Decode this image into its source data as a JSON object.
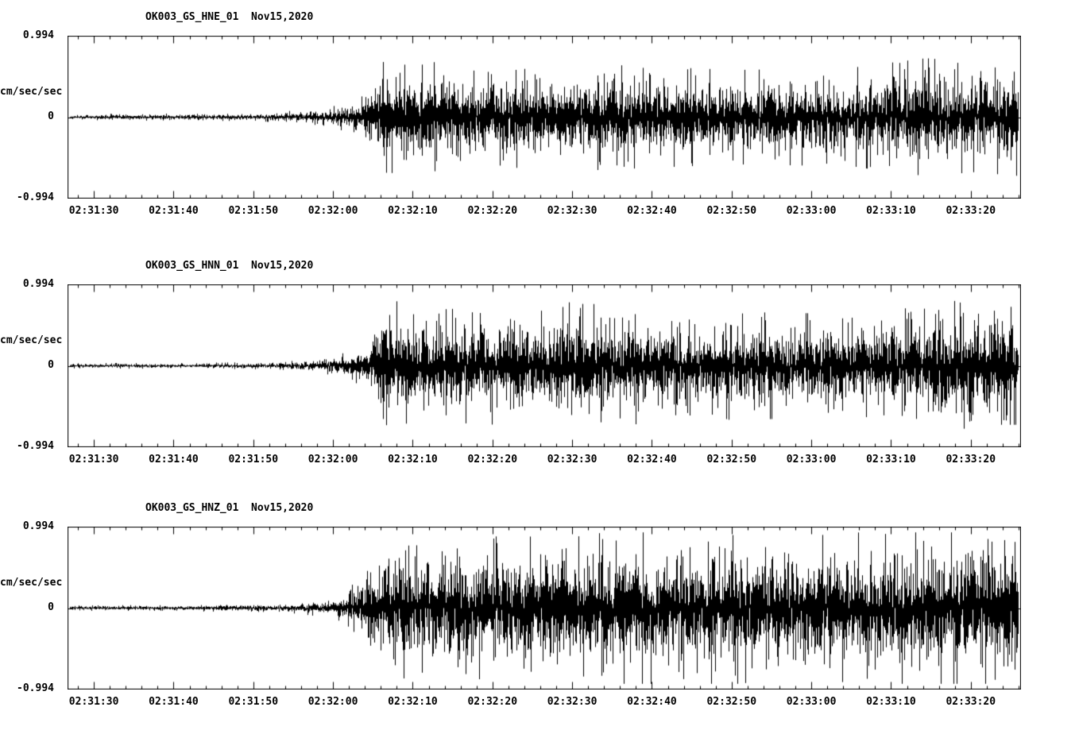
{
  "page": {
    "background_color": "#ffffff",
    "trace_color": "#000000",
    "text_color": "#000000"
  },
  "chart_data": [
    {
      "type": "line",
      "chart_kind": "seismogram-waveform",
      "title": "OK003_GS_HNE_01  Nov15,2020",
      "ylabel": "cm/sec/sec",
      "ytick_labels": [
        "0.994",
        "0",
        "-0.994"
      ],
      "ylim": [
        -0.994,
        0.994
      ],
      "grid": false,
      "legend": false,
      "x_tick_labels": [
        "02:31:30",
        "02:31:40",
        "02:31:50",
        "02:32:00",
        "02:32:10",
        "02:32:20",
        "02:32:30",
        "02:32:40",
        "02:32:50",
        "02:33:00",
        "02:33:10",
        "02:33:20"
      ],
      "x_span_seconds": 119.6,
      "first_major_offset_s": 3.3,
      "major_step_s": 10,
      "first_minor_offset_s": 1.3,
      "minor_step_s": 2,
      "amplitude_envelope": [
        [
          0.0,
          0.016
        ],
        [
          0.2,
          0.02
        ],
        [
          0.27,
          0.045
        ],
        [
          0.305,
          0.09
        ],
        [
          0.33,
          0.28
        ],
        [
          0.36,
          0.3
        ],
        [
          0.42,
          0.25
        ],
        [
          0.55,
          0.27
        ],
        [
          0.7,
          0.24
        ],
        [
          0.82,
          0.25
        ],
        [
          0.9,
          0.3
        ],
        [
          0.95,
          0.28
        ],
        [
          1.0,
          0.3
        ]
      ]
    },
    {
      "type": "line",
      "chart_kind": "seismogram-waveform",
      "title": "OK003_GS_HNN_01  Nov15,2020",
      "ylabel": "cm/sec/sec",
      "ytick_labels": [
        "0.994",
        "0",
        "-0.994"
      ],
      "ylim": [
        -0.994,
        0.994
      ],
      "grid": false,
      "legend": false,
      "x_tick_labels": [
        "02:31:30",
        "02:31:40",
        "02:31:50",
        "02:32:00",
        "02:32:10",
        "02:32:20",
        "02:32:30",
        "02:32:40",
        "02:32:50",
        "02:33:00",
        "02:33:10",
        "02:33:20"
      ],
      "x_span_seconds": 119.6,
      "first_major_offset_s": 3.3,
      "major_step_s": 10,
      "first_minor_offset_s": 1.3,
      "minor_step_s": 2,
      "amplitude_envelope": [
        [
          0.0,
          0.013
        ],
        [
          0.22,
          0.018
        ],
        [
          0.27,
          0.04
        ],
        [
          0.31,
          0.1
        ],
        [
          0.335,
          0.36
        ],
        [
          0.36,
          0.28
        ],
        [
          0.45,
          0.3
        ],
        [
          0.55,
          0.33
        ],
        [
          0.62,
          0.28
        ],
        [
          0.75,
          0.27
        ],
        [
          0.85,
          0.26
        ],
        [
          0.92,
          0.34
        ],
        [
          0.96,
          0.3
        ],
        [
          1.0,
          0.3
        ]
      ]
    },
    {
      "type": "line",
      "chart_kind": "seismogram-waveform",
      "title": "OK003_GS_HNZ_01  Nov15,2020",
      "ylabel": "cm/sec/sec",
      "ytick_labels": [
        "0.994",
        "0",
        "-0.994"
      ],
      "ylim": [
        -0.994,
        0.994
      ],
      "grid": false,
      "legend": false,
      "x_tick_labels": [
        "02:31:30",
        "02:31:40",
        "02:31:50",
        "02:32:00",
        "02:32:10",
        "02:32:20",
        "02:32:30",
        "02:32:40",
        "02:32:50",
        "02:33:00",
        "02:33:10",
        "02:33:20"
      ],
      "x_span_seconds": 119.6,
      "first_major_offset_s": 3.3,
      "major_step_s": 10,
      "first_minor_offset_s": 1.3,
      "minor_step_s": 2,
      "amplitude_envelope": [
        [
          0.0,
          0.013
        ],
        [
          0.22,
          0.02
        ],
        [
          0.28,
          0.05
        ],
        [
          0.315,
          0.22
        ],
        [
          0.34,
          0.38
        ],
        [
          0.42,
          0.36
        ],
        [
          0.55,
          0.38
        ],
        [
          0.68,
          0.4
        ],
        [
          0.8,
          0.37
        ],
        [
          0.9,
          0.42
        ],
        [
          0.94,
          0.44
        ],
        [
          1.0,
          0.4
        ]
      ]
    }
  ]
}
